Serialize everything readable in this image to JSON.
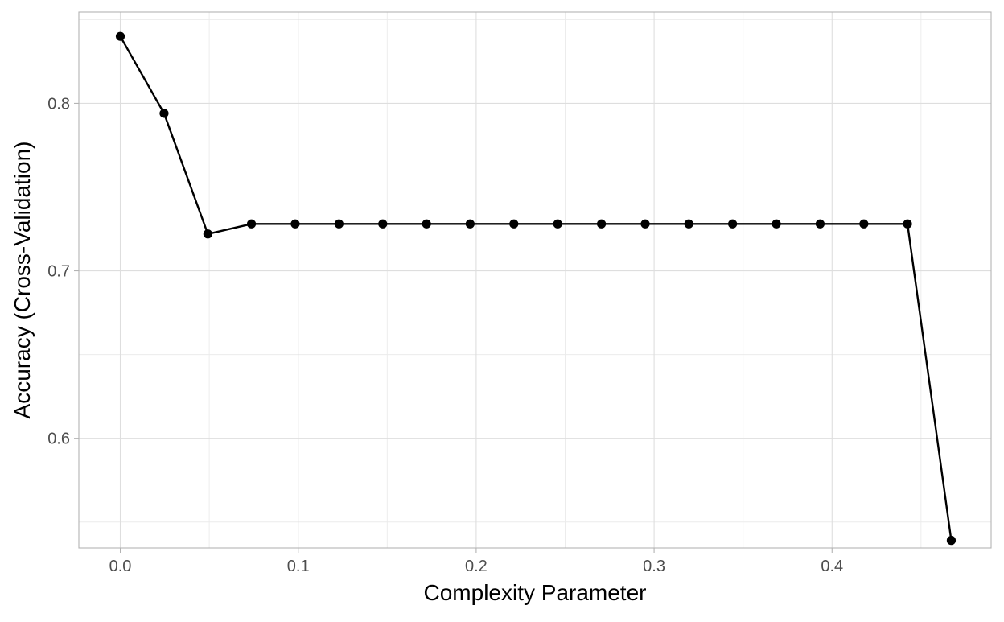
{
  "chart_data": {
    "type": "line",
    "title": "",
    "xlabel": "Complexity Parameter",
    "ylabel": "Accuracy (Cross-Validation)",
    "xlim": [
      -0.0233,
      0.4894
    ],
    "ylim": [
      0.5345,
      0.8545
    ],
    "x_ticks": [
      0.0,
      0.1,
      0.2,
      0.3,
      0.4
    ],
    "x_tick_labels": [
      "0.0",
      "0.1",
      "0.2",
      "0.3",
      "0.4"
    ],
    "y_ticks": [
      0.6,
      0.7,
      0.8
    ],
    "y_tick_labels": [
      "0.6",
      "0.7",
      "0.8"
    ],
    "grid": true,
    "legend": "none",
    "series": [
      {
        "color": "#000000",
        "x": [
          0.0,
          0.0246,
          0.0492,
          0.0737,
          0.0983,
          0.1229,
          0.1475,
          0.1721,
          0.1966,
          0.2212,
          0.2458,
          0.2704,
          0.295,
          0.3195,
          0.3441,
          0.3687,
          0.3933,
          0.4179,
          0.4424,
          0.467
        ],
        "y": [
          0.84,
          0.794,
          0.722,
          0.728,
          0.728,
          0.728,
          0.728,
          0.728,
          0.728,
          0.728,
          0.728,
          0.728,
          0.728,
          0.728,
          0.728,
          0.728,
          0.728,
          0.728,
          0.728,
          0.539
        ]
      }
    ]
  }
}
